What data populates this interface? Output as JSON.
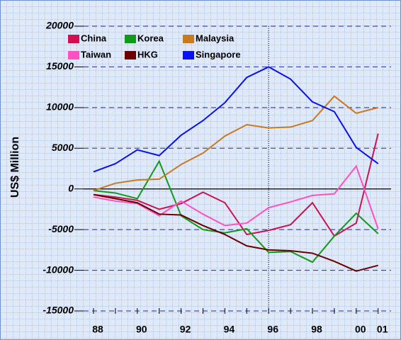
{
  "chart_data": {
    "type": "line",
    "y_label": "US$ Million",
    "categories": [
      "88",
      null,
      "90",
      null,
      "92",
      null,
      "94",
      null,
      "96",
      null,
      "98",
      null,
      "00",
      "01"
    ],
    "series": [
      {
        "name": "China",
        "color": "#d01050",
        "values": [
          -700,
          -1000,
          -1400,
          -2500,
          -1800,
          -400,
          -1700,
          -5600,
          -5100,
          -4400,
          -1700,
          -5800,
          -4200,
          6800
        ]
      },
      {
        "name": "Korea",
        "color": "#119a1a",
        "values": [
          -200,
          -500,
          -1200,
          3400,
          -3300,
          -5000,
          -5400,
          -4900,
          -7800,
          -7700,
          -9000,
          -5800,
          -3000,
          -5500
        ]
      },
      {
        "name": "Malaysia",
        "color": "#c87a20",
        "values": [
          -200,
          700,
          1100,
          1200,
          3000,
          4400,
          6500,
          7900,
          7500,
          7600,
          8400,
          11400,
          9300,
          10000
        ]
      },
      {
        "name": "Taiwan",
        "color": "#ff50c0",
        "values": [
          -1000,
          -1500,
          -1800,
          -3300,
          -1500,
          -3100,
          -4500,
          -4200,
          -2300,
          -1600,
          -800,
          -600,
          2800,
          -4900
        ]
      },
      {
        "name": "HKG",
        "color": "#6a0000",
        "values": [
          -700,
          -1200,
          -1700,
          -3100,
          -3200,
          -4500,
          -5600,
          -7000,
          -7500,
          -7600,
          -7900,
          -8900,
          -10100,
          -9400
        ]
      },
      {
        "name": "Singapore",
        "color": "#0a10f0",
        "values": [
          2100,
          3100,
          4800,
          4100,
          6600,
          8400,
          10600,
          13700,
          15000,
          13500,
          10700,
          9500,
          5100,
          3100
        ]
      }
    ],
    "ylim": [
      -15000,
      20000
    ],
    "yticks": [
      -15000,
      -10000,
      -5000,
      0,
      5000,
      10000,
      15000,
      20000
    ],
    "grid": true,
    "vline_index": 8,
    "legend": "upper left"
  }
}
